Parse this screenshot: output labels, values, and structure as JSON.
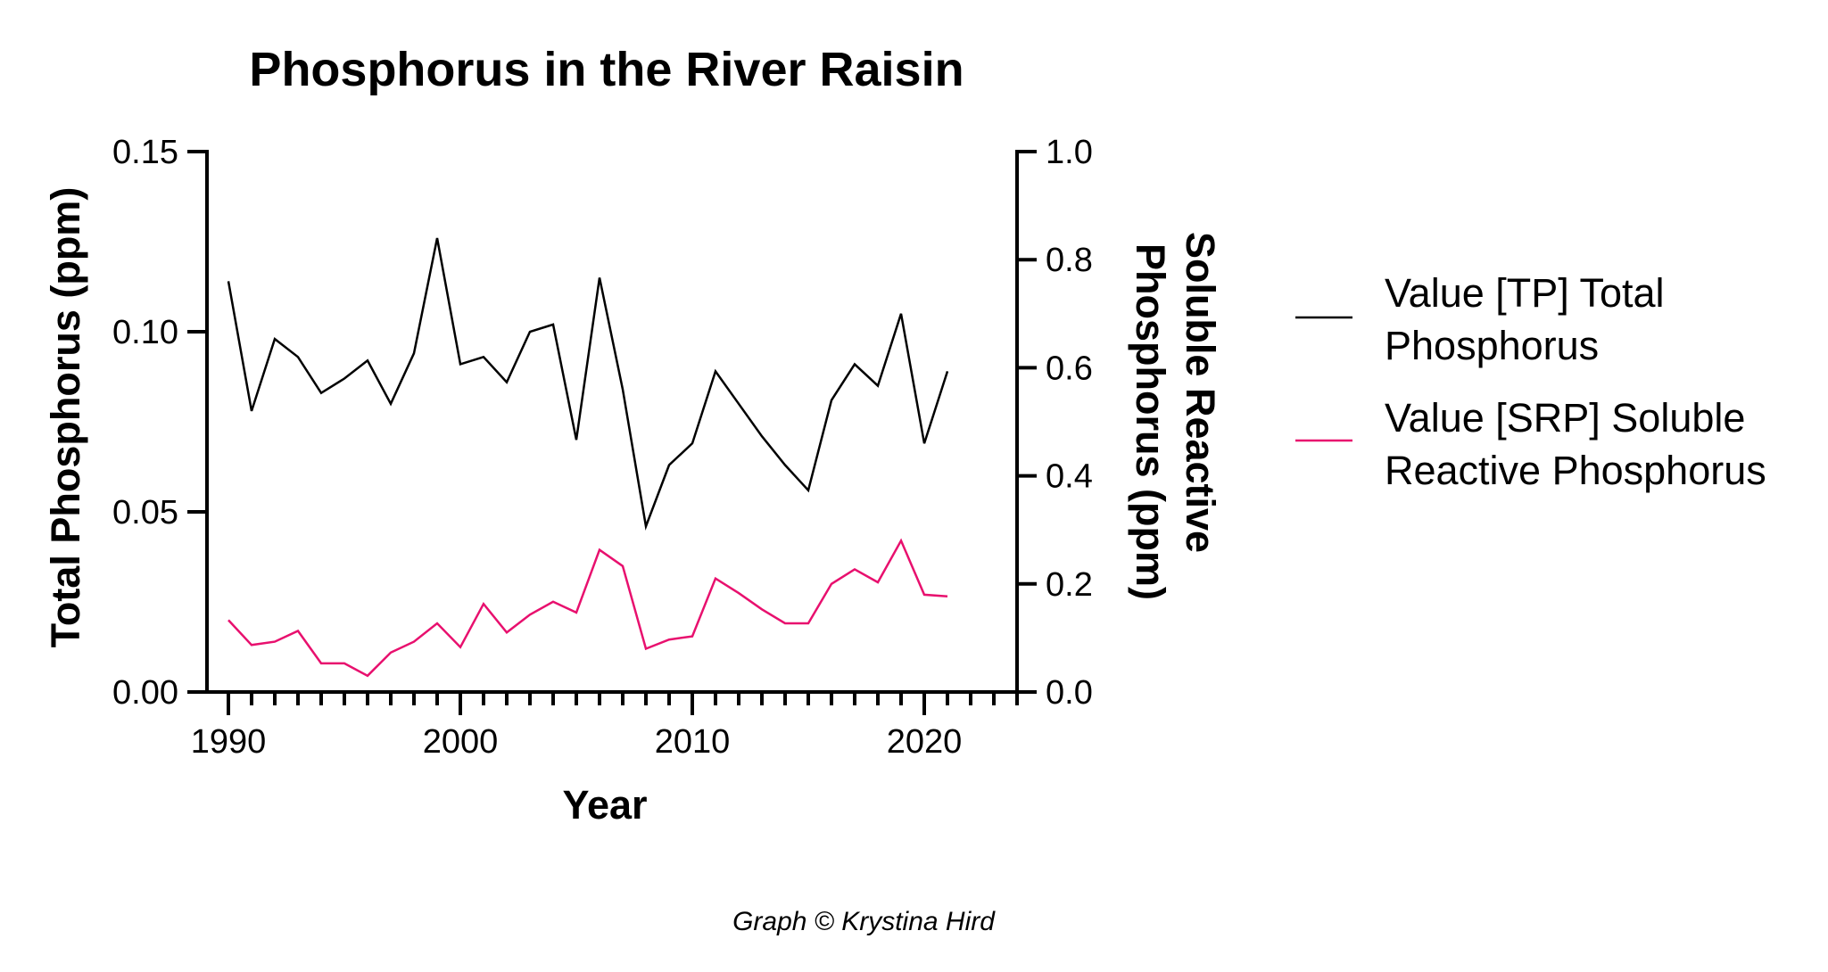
{
  "chart_data": {
    "type": "line",
    "title": "Phosphorus in the River Raisin",
    "xlabel": "Year",
    "ylabel": "Total Phosphorus (ppm)",
    "y2label_line1": "Soluble Reactive",
    "y2label_line2": "Phosphorus (ppm)",
    "xlim": [
      1989,
      2024
    ],
    "xticks": [
      "1990",
      "2000",
      "2010",
      "2020"
    ],
    "ylim": [
      0,
      0.15
    ],
    "yticks": [
      "0.00",
      "0.05",
      "0.10",
      "0.15"
    ],
    "y2lim": [
      0,
      1.0
    ],
    "y2ticks": [
      "0.0",
      "0.2",
      "0.4",
      "0.6",
      "0.8",
      "1.0"
    ],
    "grid": false,
    "legend_position": "right",
    "x": [
      1990,
      1991,
      1992,
      1993,
      1994,
      1995,
      1996,
      1997,
      1998,
      1999,
      2000,
      2001,
      2002,
      2003,
      2004,
      2005,
      2006,
      2007,
      2008,
      2009,
      2010,
      2011,
      2012,
      2013,
      2014,
      2015,
      2016,
      2017,
      2018,
      2019,
      2020,
      2021
    ],
    "series": [
      {
        "name": "Value [TP] Total Phosphorus",
        "legend_line1": "Value [TP] Total",
        "legend_line2": "Phosphorus",
        "axis": "left",
        "color": "#000000",
        "values": [
          0.114,
          0.078,
          0.098,
          0.093,
          0.083,
          0.087,
          0.092,
          0.08,
          0.094,
          0.126,
          0.091,
          0.093,
          0.086,
          0.1,
          0.102,
          0.07,
          0.115,
          0.084,
          0.046,
          0.063,
          0.069,
          0.089,
          0.08,
          0.071,
          0.063,
          0.056,
          0.081,
          0.091,
          0.085,
          0.105,
          0.069,
          0.089
        ]
      },
      {
        "name": "Value [SRP] Soluble Reactive Phosphorus",
        "legend_line1": "Value [SRP] Soluble",
        "legend_line2": "Reactive Phosphorus",
        "axis": "right",
        "color": "#e8106e",
        "values": [
          0.133,
          0.087,
          0.093,
          0.113,
          0.053,
          0.053,
          0.03,
          0.073,
          0.093,
          0.127,
          0.083,
          0.163,
          0.11,
          0.143,
          0.167,
          0.147,
          0.263,
          0.233,
          0.08,
          0.097,
          0.103,
          0.21,
          0.183,
          0.153,
          0.127,
          0.127,
          0.2,
          0.227,
          0.203,
          0.28,
          0.18,
          0.177
        ]
      }
    ]
  },
  "credit": "Graph © Krystina Hird"
}
